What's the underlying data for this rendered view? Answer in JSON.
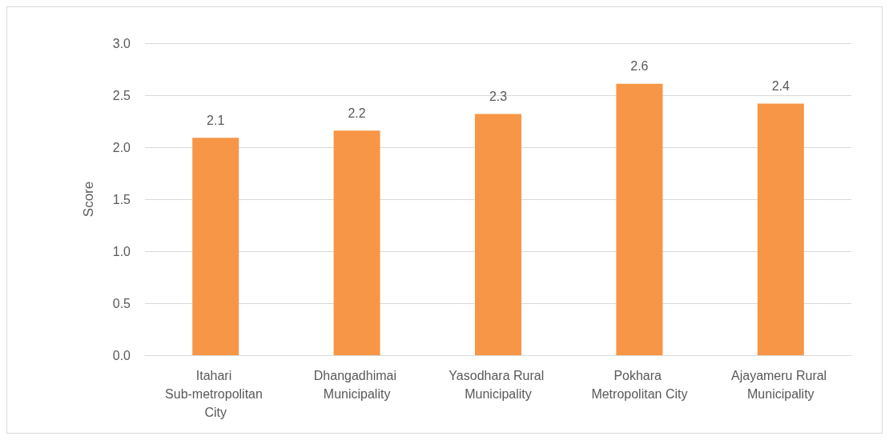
{
  "chart_data": {
    "type": "bar",
    "ylabel": "Score",
    "categories": [
      "Itahari Sub-metropolitan City",
      "Dhangadhimai Municipality",
      "Yasodhara Rural Municipality",
      "Pokhara Metropolitan City",
      "Ajayameru Rural Municipality"
    ],
    "values": [
      2.09,
      2.16,
      2.32,
      2.61,
      2.42
    ],
    "value_labels": [
      "2.1",
      "2.2",
      "2.3",
      "2.6",
      "2.4"
    ],
    "color": "#f79646",
    "ylim": [
      0,
      3
    ],
    "yticks": [
      {
        "value": 0,
        "label": "0.0"
      },
      {
        "value": 0.5,
        "label": "0.5"
      },
      {
        "value": 1,
        "label": "1.0"
      },
      {
        "value": 1.5,
        "label": "1.5"
      },
      {
        "value": 2,
        "label": "2.0"
      },
      {
        "value": 2.5,
        "label": "2.5"
      },
      {
        "value": 3,
        "label": "3.0"
      }
    ],
    "grid": "y"
  }
}
